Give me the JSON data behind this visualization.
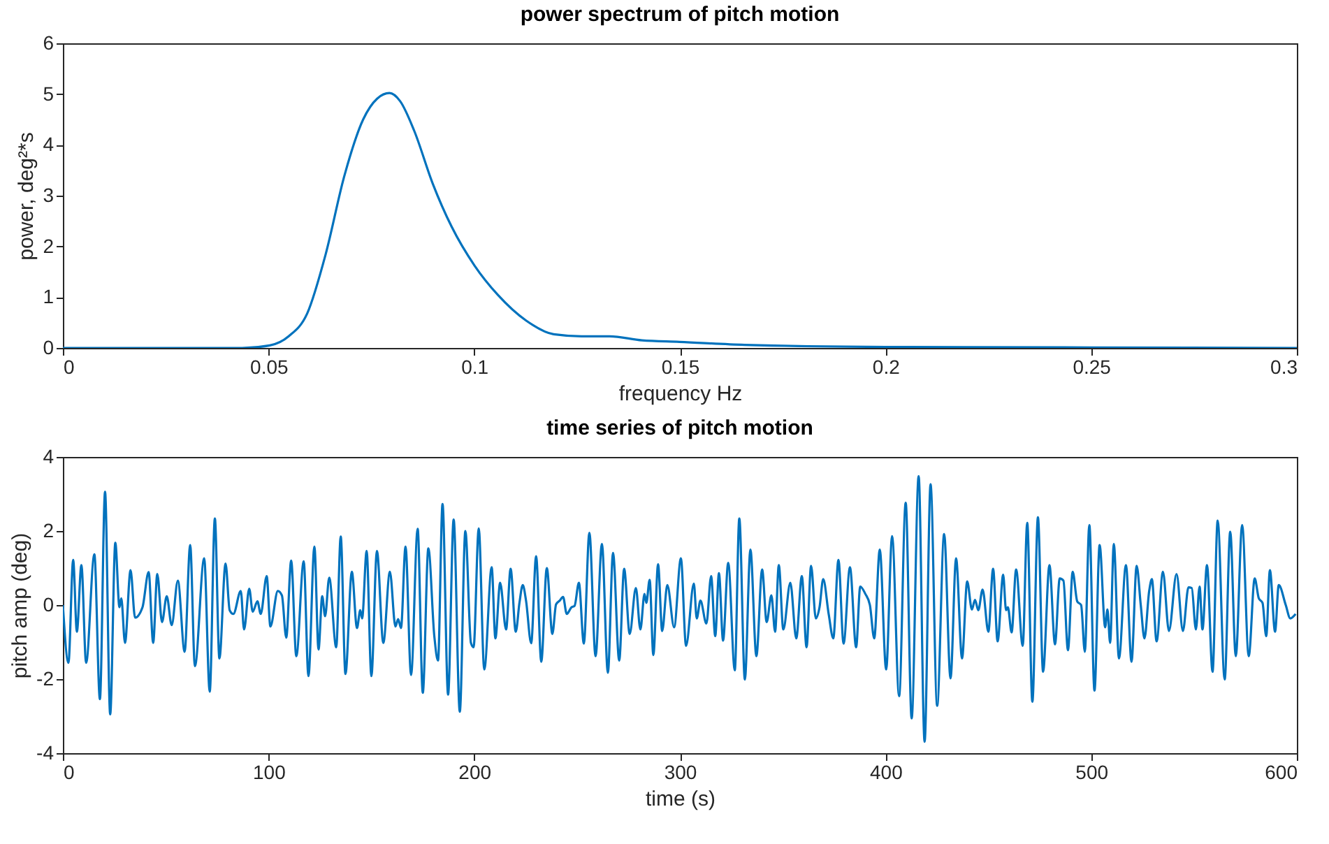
{
  "chart_data": [
    {
      "type": "line",
      "title": "power spectrum of pitch motion",
      "xlabel": "frequency Hz",
      "ylabel": "power, deg²*s",
      "xlim": [
        0,
        0.3
      ],
      "ylim": [
        0,
        6
      ],
      "xticks": [
        0,
        0.05,
        0.1,
        0.15,
        0.2,
        0.25,
        0.3
      ],
      "yticks": [
        0,
        1,
        2,
        3,
        4,
        5,
        6
      ],
      "x": [
        0,
        0.0436,
        0.0503,
        0.0549,
        0.0594,
        0.0639,
        0.0684,
        0.073,
        0.0764,
        0.0794,
        0.082,
        0.0854,
        0.0899,
        0.0945,
        0.1001,
        0.1058,
        0.1126,
        0.1193,
        0.1261,
        0.1329,
        0.1408,
        0.1499,
        0.1657,
        0.2,
        0.25,
        0.3
      ],
      "series": [
        {
          "color": "#0072bd",
          "values": [
            0,
            0,
            0.05,
            0.23,
            0.68,
            1.85,
            3.38,
            4.5,
            4.91,
            5.02,
            4.86,
            4.28,
            3.24,
            2.39,
            1.62,
            1.04,
            0.54,
            0.27,
            0.23,
            0.23,
            0.15,
            0.12,
            0.06,
            0.02,
            0.01,
            0
          ]
        }
      ]
    },
    {
      "type": "line",
      "title": "time series of pitch motion",
      "xlabel": "time (s)",
      "ylabel": "pitch amp (deg)",
      "xlim": [
        0,
        600
      ],
      "ylim": [
        -4,
        4
      ],
      "xticks": [
        0,
        100,
        200,
        300,
        400,
        500,
        600
      ],
      "yticks": [
        -4,
        -2,
        0,
        2,
        4
      ],
      "x": [
        0,
        2.7,
        5.0,
        6.8,
        9.0,
        11.3,
        15.3,
        18.0,
        20.5,
        23.0,
        25.5,
        27.5,
        28.4,
        30.2,
        32.9,
        35.1,
        38.7,
        41.7,
        43.9,
        45.9,
        48.2,
        50.5,
        52.9,
        55.9,
        59.2,
        61.9,
        64.2,
        68.7,
        71.4,
        73.9,
        76.1,
        79.1,
        81.1,
        82.9,
        86.5,
        88.1,
        90.6,
        92.3,
        94.6,
        96.2,
        99.1,
        100.9,
        104.5,
        106.5,
        108.6,
        111.0,
        113.5,
        117.1,
        119.4,
        122.3,
        124.3,
        126.1,
        127.5,
        129.5,
        132.9,
        135.1,
        137.4,
        140.5,
        143.0,
        144.6,
        145.5,
        147.7,
        150.0,
        152.7,
        155.8,
        159.0,
        161.7,
        163.0,
        164.4,
        166.6,
        169.3,
        172.5,
        175.0,
        177.7,
        180.6,
        182.4,
        184.6,
        187.3,
        190.0,
        193.0,
        195.7,
        198.4,
        199.7,
        202.2,
        204.9,
        208.5,
        210.3,
        212.6,
        215.5,
        217.7,
        220.2,
        222.0,
        223.6,
        225.2,
        227.7,
        230.1,
        232.6,
        235.3,
        238.0,
        239.8,
        241.6,
        243.2,
        245.0,
        247.3,
        248.8,
        250.9,
        253.3,
        256.0,
        259.0,
        262.1,
        265.0,
        267.5,
        270.5,
        272.9,
        275.6,
        278.6,
        280.8,
        282.8,
        283.7,
        285.3,
        287.1,
        289.4,
        291.4,
        293.9,
        297.2,
        300.5,
        303.0,
        306.8,
        308.2,
        310.0,
        312.9,
        315.2,
        317.2,
        319.0,
        321.0,
        323.5,
        326.7,
        328.9,
        331.6,
        334.3,
        337.2,
        340.0,
        342.2,
        344.5,
        346.3,
        348.1,
        350.3,
        353.7,
        356.6,
        359.3,
        361.6,
        363.8,
        366.1,
        367.9,
        369.7,
        372.4,
        374.6,
        377.1,
        379.6,
        382.7,
        385.7,
        387.7,
        390.2,
        392.4,
        394.5,
        397.2,
        400.3,
        403.2,
        406.6,
        409.8,
        412.7,
        416.1,
        419.0,
        421.9,
        425.1,
        428.5,
        431.6,
        434.3,
        437.2,
        439.7,
        442.0,
        443.5,
        445.1,
        447.2,
        450.0,
        452.3,
        454.5,
        457.2,
        458.6,
        459.5,
        461.3,
        463.5,
        466.7,
        468.9,
        471.4,
        474.1,
        476.6,
        479.7,
        482.4,
        484.7,
        486.5,
        488.7,
        491.0,
        493.2,
        495.1,
        496.9,
        499.1,
        501.6,
        504.1,
        506.8,
        507.9,
        509.2,
        511.0,
        513.5,
        516.9,
        519.6,
        522.1,
        524.1,
        525.9,
        528.2,
        529.5,
        531.8,
        534.9,
        537.8,
        541.5,
        544.6,
        547.3,
        548.9,
        550.9,
        552.7,
        554.1,
        556.3,
        559.0,
        561.5,
        564.9,
        567.6,
        570.3,
        573.4,
        576.6,
        579.5,
        581.5,
        583.3,
        585.1,
        586.9,
        589.4,
        591.2,
        594.6,
        596.8,
        599.4
      ],
      "series": [
        {
          "color": "#0072bd",
          "values": [
            0,
            -1.56,
            1.22,
            -0.72,
            1.08,
            -1.56,
            1.37,
            -2.54,
            3.06,
            -2.95,
            1.68,
            -0.06,
            0.18,
            -1.02,
            0.94,
            -0.34,
            -0.06,
            0.89,
            -1.02,
            0.84,
            -0.46,
            0.24,
            -0.54,
            0.66,
            -1.26,
            1.62,
            -1.65,
            1.26,
            -2.34,
            2.34,
            -1.44,
            1.12,
            -0.14,
            -0.24,
            0.38,
            -0.66,
            0.44,
            -0.18,
            0.1,
            -0.24,
            0.78,
            -0.58,
            0.38,
            0.26,
            -0.88,
            1.2,
            -1.38,
            1.18,
            -1.92,
            1.58,
            -1.2,
            0.24,
            -0.3,
            0.74,
            -1.14,
            1.85,
            -1.86,
            0.9,
            -0.62,
            -0.14,
            -0.36,
            1.46,
            -1.92,
            1.46,
            -1.02,
            0.9,
            -0.58,
            -0.38,
            -0.62,
            1.58,
            -1.89,
            2.06,
            -2.37,
            1.53,
            -0.84,
            -1.5,
            2.73,
            -2.42,
            2.31,
            -2.88,
            2.0,
            -1.02,
            -1.14,
            2.07,
            -1.74,
            1.02,
            -0.9,
            0.6,
            -0.66,
            0.98,
            -0.72,
            0.06,
            0.54,
            0.12,
            -1.03,
            1.32,
            -1.53,
            1.0,
            -0.78,
            0.02,
            0.12,
            0.22,
            -0.24,
            -0.06,
            -0.02,
            0.6,
            -1.04,
            1.95,
            -1.38,
            1.65,
            -1.83,
            1.41,
            -1.5,
            0.98,
            -0.78,
            0.46,
            -0.66,
            0.3,
            0.06,
            0.68,
            -1.35,
            1.1,
            -0.7,
            0.54,
            -0.6,
            1.26,
            -1.1,
            0.58,
            -0.36,
            0.12,
            -0.5,
            0.78,
            -0.84,
            0.86,
            -0.96,
            1.14,
            -1.76,
            2.34,
            -2.01,
            1.5,
            -1.38,
            0.96,
            -0.46,
            0.26,
            -0.72,
            1.08,
            -0.66,
            0.6,
            -0.9,
            0.78,
            -1.14,
            1.06,
            -0.36,
            -0.06,
            0.7,
            -0.26,
            -0.9,
            1.22,
            -1.04,
            1.02,
            -1.14,
            0.5,
            0.3,
            0.0,
            -0.9,
            1.5,
            -1.74,
            1.86,
            -2.46,
            2.76,
            -3.06,
            3.48,
            -3.69,
            3.26,
            -2.72,
            1.92,
            -1.98,
            1.26,
            -1.44,
            0.64,
            -0.12,
            0.14,
            -0.14,
            0.42,
            -0.72,
            0.98,
            -0.98,
            0.82,
            -0.14,
            -0.06,
            -0.74,
            0.96,
            -1.1,
            2.22,
            -2.61,
            2.37,
            -1.8,
            1.08,
            -1.06,
            0.72,
            0.66,
            -1.22,
            0.9,
            0.1,
            0.0,
            -1.26,
            2.16,
            -2.31,
            1.62,
            -0.6,
            -0.12,
            -1.02,
            1.65,
            -1.44,
            1.08,
            -1.53,
            1.06,
            0.0,
            -0.9,
            0.38,
            0.7,
            -0.98,
            0.9,
            -0.7,
            0.84,
            -0.7,
            0.48,
            0.46,
            -0.66,
            0.5,
            -0.66,
            1.08,
            -1.8,
            2.28,
            -2.01,
            1.98,
            -1.38,
            2.16,
            -1.38,
            0.72,
            0.18,
            0.06,
            -0.84,
            0.94,
            -0.72,
            0.54,
            0.0,
            -0.36,
            -0.24
          ]
        }
      ]
    }
  ]
}
